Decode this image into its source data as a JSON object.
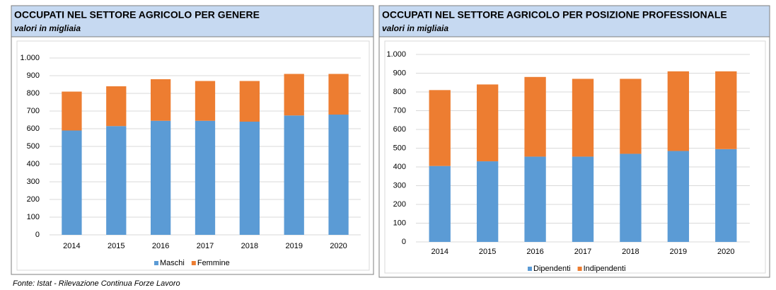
{
  "chart_data": [
    {
      "type": "bar",
      "stacked": true,
      "title": "OCCUPATI NEL SETTORE AGRICOLO PER GENERE",
      "subtitle": "valori in migliaia",
      "categories": [
        "2014",
        "2015",
        "2016",
        "2017",
        "2018",
        "2019",
        "2020"
      ],
      "series": [
        {
          "name": "Maschi",
          "color": "#5b9bd5",
          "values": [
            590,
            615,
            645,
            645,
            640,
            675,
            680
          ]
        },
        {
          "name": "Femmine",
          "color": "#ed7d31",
          "values": [
            220,
            225,
            235,
            225,
            230,
            235,
            230
          ]
        }
      ],
      "ylim": [
        0,
        1000
      ],
      "yticks": [
        0,
        100,
        200,
        300,
        400,
        500,
        600,
        700,
        800,
        900,
        {
          "value": 1000,
          "label": "1.000"
        }
      ],
      "grid": true,
      "legend": "bottom"
    },
    {
      "type": "bar",
      "stacked": true,
      "title": "OCCUPATI NEL SETTORE AGRICOLO PER POSIZIONE PROFESSIONALE",
      "subtitle": "valori in migliaia",
      "categories": [
        "2014",
        "2015",
        "2016",
        "2017",
        "2018",
        "2019",
        "2020"
      ],
      "series": [
        {
          "name": "Dipendenti",
          "color": "#5b9bd5",
          "values": [
            405,
            430,
            455,
            455,
            470,
            485,
            495
          ]
        },
        {
          "name": "Indipendenti",
          "color": "#ed7d31",
          "values": [
            405,
            410,
            425,
            415,
            400,
            425,
            415
          ]
        }
      ],
      "ylim": [
        0,
        1000
      ],
      "yticks": [
        0,
        100,
        200,
        300,
        400,
        500,
        600,
        700,
        800,
        900,
        {
          "value": 1000,
          "label": "1.000"
        }
      ],
      "grid": true,
      "legend": "bottom"
    }
  ],
  "source": "Fonte: Istat - Rilevazione Continua Forze Lavoro"
}
